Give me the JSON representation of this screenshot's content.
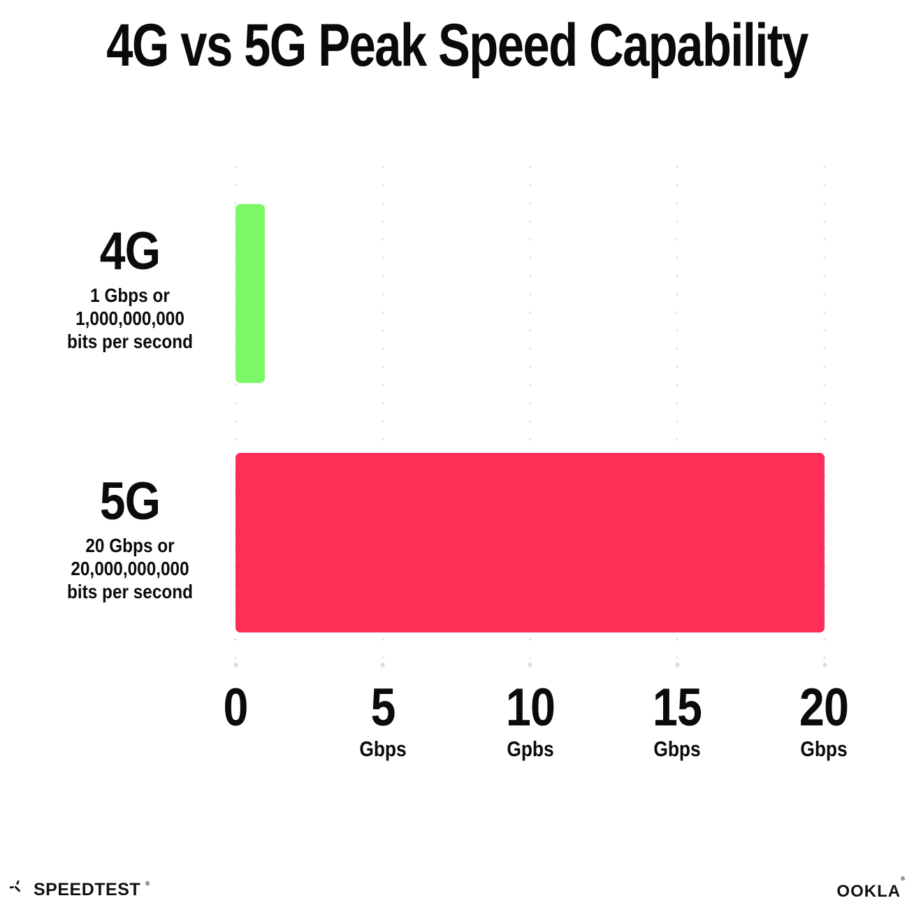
{
  "title": "4G vs 5G Peak Speed Capability",
  "rows": [
    {
      "label": "4G",
      "desc_line1": "1 Gbps or",
      "desc_line2": "1,000,000,000",
      "desc_line3": "bits per second"
    },
    {
      "label": "5G",
      "desc_line1": "20 Gbps or",
      "desc_line2": "20,000,000,000",
      "desc_line3": "bits per second"
    }
  ],
  "x_axis": {
    "ticks": [
      {
        "value": "0",
        "unit": ""
      },
      {
        "value": "5",
        "unit": "Gbps"
      },
      {
        "value": "10",
        "unit": "Gpbs"
      },
      {
        "value": "15",
        "unit": "Gbps"
      },
      {
        "value": "20",
        "unit": "Gbps"
      }
    ]
  },
  "footer": {
    "speedtest_icon": "speedtest-gauge-icon",
    "speedtest_wordmark": "SPEEDTEST",
    "speedtest_trademark": "®",
    "ookla_wordmark": "OOKLA",
    "ookla_trademark": "®"
  },
  "colors": {
    "bar_4g": "#7CF866",
    "bar_5g": "#FE2E56",
    "text": "#0A0A0A",
    "gridline": "#E1E1EC"
  },
  "chart_data": {
    "type": "bar",
    "orientation": "horizontal",
    "title": "4G vs 5G Peak Speed Capability",
    "categories": [
      "4G",
      "5G"
    ],
    "values": [
      1,
      20
    ],
    "unit": "Gbps",
    "value_descriptions": [
      "1 Gbps or 1,000,000,000 bits per second",
      "20 Gbps or 20,000,000,000 bits per second"
    ],
    "bar_colors": [
      "#7CF866",
      "#FE2E56"
    ],
    "xlabel": "Gbps",
    "xlim": [
      0,
      20
    ],
    "x_tick_values": [
      0,
      5,
      10,
      15,
      20
    ],
    "x_tick_labels": [
      "0",
      "5 Gbps",
      "10 Gpbs",
      "15 Gbps",
      "20 Gbps"
    ],
    "grid": "vertical-dotted",
    "legend": "none"
  }
}
